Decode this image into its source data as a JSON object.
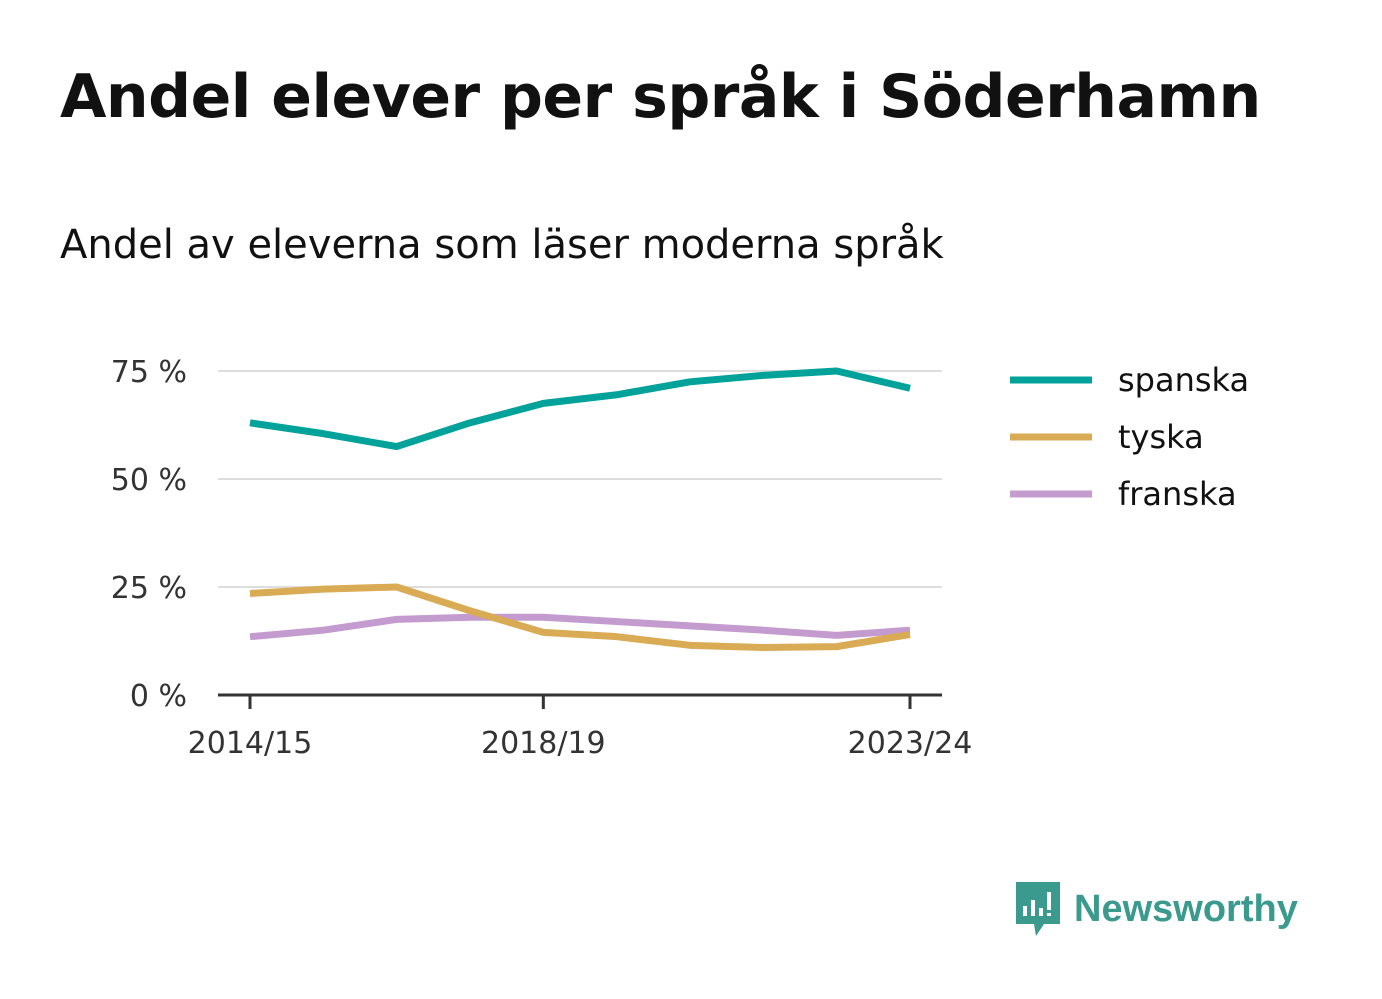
{
  "title": "Andel elever per språk i Söderhamn",
  "subtitle": "Andel av eleverna som läser moderna språk",
  "brand": {
    "name": "Newsworthy",
    "icon": "newsworthy-logo-icon",
    "color": "#3a9a8e"
  },
  "chart_data": {
    "type": "line",
    "x": [
      "2014/15",
      "2015/16",
      "2016/17",
      "2017/18",
      "2018/19",
      "2019/20",
      "2020/21",
      "2021/22",
      "2022/23",
      "2023/24"
    ],
    "x_ticks": [
      "2014/15",
      "2018/19",
      "2023/24"
    ],
    "y_ticks": [
      0,
      25,
      50,
      75
    ],
    "y_tick_labels": [
      "0 %",
      "25 %",
      "50 %",
      "75 %"
    ],
    "ylim": [
      0,
      75
    ],
    "grid": true,
    "legend_position": "right",
    "series": [
      {
        "name": "spanska",
        "color": "#00a29a",
        "values": [
          63.0,
          60.5,
          57.5,
          63.0,
          67.5,
          69.5,
          72.5,
          74.0,
          75.0,
          71.0
        ]
      },
      {
        "name": "tyska",
        "color": "#d9ab55",
        "values": [
          23.5,
          24.5,
          25.0,
          19.5,
          14.5,
          13.5,
          11.5,
          11.0,
          11.2,
          14.0
        ]
      },
      {
        "name": "franska",
        "color": "#c49bce",
        "values": [
          13.5,
          15.0,
          17.5,
          18.0,
          18.0,
          17.0,
          16.0,
          15.0,
          13.8,
          15.0
        ]
      }
    ]
  }
}
